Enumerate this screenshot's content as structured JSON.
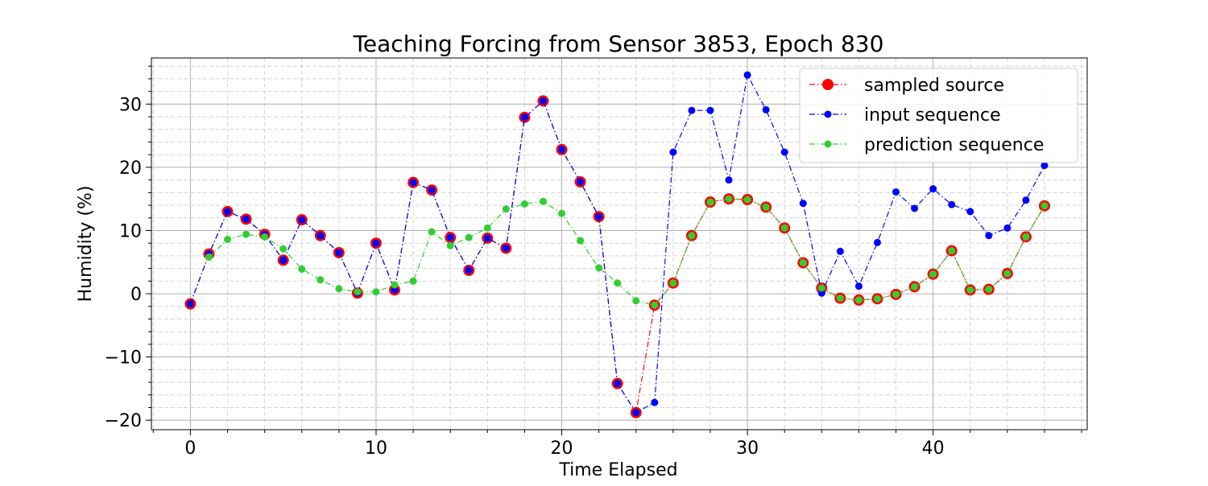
{
  "chart_data": {
    "type": "line",
    "title": "Teaching Forcing from Sensor 3853, Epoch 830",
    "xlabel": "Time Elapsed",
    "ylabel": "Humidity (%)",
    "xlim": [
      -2.1,
      48.3
    ],
    "ylim": [
      -21.5,
      37.3
    ],
    "xticks": [
      0,
      10,
      20,
      30,
      40
    ],
    "yticks": [
      -20,
      -10,
      0,
      10,
      20,
      30
    ],
    "grid": true,
    "legend_position": "top-right",
    "series": [
      {
        "name": "sampled source",
        "color": "#ff0000",
        "marker": "large-circle",
        "linestyle": "dash-dot",
        "x": [
          0,
          1,
          2,
          3,
          4,
          5,
          6,
          7,
          8,
          9,
          10,
          11,
          12,
          13,
          14,
          15,
          16,
          17,
          18,
          19,
          20,
          21,
          22,
          23,
          24,
          25,
          26,
          27,
          28,
          29,
          30,
          31,
          32,
          33,
          34,
          35,
          36,
          37,
          38,
          39,
          40,
          41,
          42,
          43,
          44,
          45,
          46
        ],
        "values": [
          -1.6,
          6.3,
          13.0,
          11.8,
          9.4,
          5.3,
          11.7,
          9.2,
          6.5,
          0.1,
          8.0,
          0.6,
          17.6,
          16.4,
          8.9,
          3.7,
          8.8,
          7.2,
          27.9,
          30.5,
          22.8,
          17.7,
          12.2,
          -14.2,
          -18.8,
          -1.8,
          1.7,
          9.2,
          14.5,
          15.0,
          14.9,
          13.7,
          10.4,
          4.9,
          0.9,
          -0.7,
          -1.0,
          -0.8,
          -0.1,
          1.1,
          3.1,
          6.8,
          0.6,
          0.7,
          3.2,
          9.0,
          13.9
        ]
      },
      {
        "name": "input sequence",
        "color": "#0000ff",
        "marker": "circle",
        "linestyle": "dash-dot",
        "x": [
          0,
          1,
          2,
          3,
          4,
          5,
          6,
          7,
          8,
          9,
          10,
          11,
          12,
          13,
          14,
          15,
          16,
          17,
          18,
          19,
          20,
          21,
          22,
          23,
          24,
          25,
          26,
          27,
          28,
          29,
          30,
          31,
          32,
          33,
          34,
          35,
          36,
          37,
          38,
          39,
          40,
          41,
          42,
          43,
          44,
          45,
          46
        ],
        "values": [
          -1.6,
          6.3,
          13.0,
          11.8,
          9.4,
          5.3,
          11.7,
          9.2,
          6.5,
          0.1,
          8.0,
          0.6,
          17.6,
          16.4,
          8.9,
          3.7,
          8.8,
          7.2,
          27.9,
          30.5,
          22.8,
          17.7,
          12.2,
          -14.2,
          -18.8,
          -17.2,
          22.4,
          29.0,
          29.0,
          18.0,
          34.6,
          29.1,
          22.4,
          14.3,
          0.1,
          6.7,
          1.2,
          8.1,
          16.1,
          13.5,
          16.6,
          14.1,
          13.0,
          9.2,
          10.4,
          14.8,
          20.3
        ]
      },
      {
        "name": "prediction sequence",
        "color": "#32cd32",
        "marker": "circle",
        "linestyle": "dash-dot",
        "x": [
          1,
          2,
          3,
          4,
          5,
          6,
          7,
          8,
          9,
          10,
          11,
          12,
          13,
          14,
          15,
          16,
          17,
          18,
          19,
          20,
          21,
          22,
          23,
          24,
          25,
          26,
          27,
          28,
          29,
          30,
          31,
          32,
          33,
          34,
          35,
          36,
          37,
          38,
          39,
          40,
          41,
          42,
          43,
          44,
          45,
          46
        ],
        "values": [
          5.8,
          8.6,
          9.4,
          9.0,
          7.1,
          3.9,
          2.2,
          0.8,
          0.3,
          0.3,
          1.4,
          2.0,
          9.8,
          7.6,
          8.9,
          10.4,
          13.4,
          14.2,
          14.6,
          12.7,
          8.4,
          4.1,
          1.7,
          -1.1,
          -1.8,
          1.7,
          9.2,
          14.5,
          15.0,
          14.9,
          13.7,
          10.4,
          4.9,
          0.9,
          -0.7,
          -1.0,
          -0.8,
          -0.1,
          1.1,
          3.1,
          6.8,
          0.6,
          0.7,
          3.2,
          9.0,
          13.9
        ]
      }
    ]
  }
}
